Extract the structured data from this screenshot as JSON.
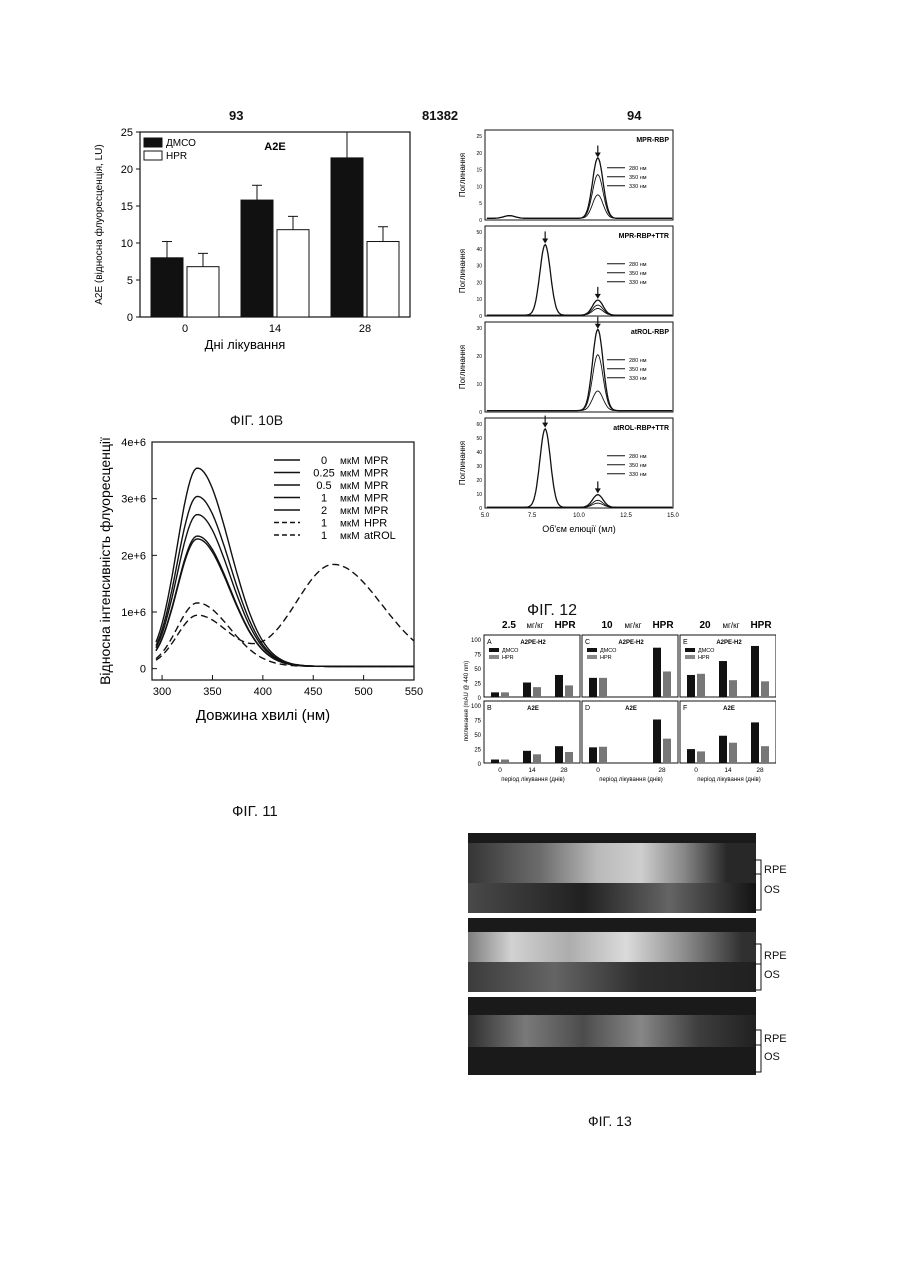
{
  "header": {
    "left": "93",
    "center": "81382",
    "right": "94"
  },
  "fig10b": {
    "caption": "ФІГ. 10В",
    "chart_data": {
      "type": "bar",
      "title": "A2E",
      "xlabel": "Дні лікування",
      "ylabel": "A2E (відносна флуоресценція, LU)",
      "categories": [
        "0",
        "14",
        "28"
      ],
      "ylim": [
        0,
        25
      ],
      "yticks": [
        0,
        5,
        10,
        15,
        20,
        25
      ],
      "series": [
        {
          "name": "ДМСО",
          "values": [
            8,
            15.8,
            21.5
          ],
          "errors": [
            2.2,
            2.0,
            3.5
          ],
          "color": "#111111"
        },
        {
          "name": "HPR",
          "values": [
            6.8,
            11.8,
            10.2
          ],
          "errors": [
            1.8,
            1.8,
            2.0
          ],
          "color": "#ffffff"
        }
      ]
    }
  },
  "fig11": {
    "caption": "ФІГ. 11",
    "chart_data": {
      "type": "line",
      "xlabel": "Довжина хвилі (нм)",
      "ylabel": "Відносна інтенсивність флуоресценції",
      "xlim": [
        290,
        550
      ],
      "ylim": [
        0,
        4000000
      ],
      "xticks": [
        300,
        350,
        400,
        450,
        500,
        550
      ],
      "yticks": [
        0,
        1000000,
        2000000,
        3000000,
        4000000
      ],
      "ytick_labels": [
        "0",
        "1e+6",
        "2e+6",
        "3e+6",
        "4e+6"
      ],
      "series": [
        {
          "name": "0 мкМ MPR",
          "conc": "0",
          "unit": "мкМ",
          "agent": "MPR",
          "peak_x": 335,
          "peak_y": 3500000,
          "dash": "solid"
        },
        {
          "name": "0.25 мкМ MPR",
          "conc": "0.25",
          "unit": "мкМ",
          "agent": "MPR",
          "peak_x": 335,
          "peak_y": 3000000,
          "dash": "solid"
        },
        {
          "name": "0.5 мкМ MPR",
          "conc": "0.5",
          "unit": "мкМ",
          "agent": "MPR",
          "peak_x": 335,
          "peak_y": 2680000,
          "dash": "solid"
        },
        {
          "name": "1 мкМ MPR",
          "conc": "1",
          "unit": "мкМ",
          "agent": "MPR",
          "peak_x": 335,
          "peak_y": 2300000,
          "dash": "solid"
        },
        {
          "name": "2 мкМ MPR",
          "conc": "2",
          "unit": "мкМ",
          "agent": "MPR",
          "peak_x": 335,
          "peak_y": 2250000,
          "dash": "solid"
        },
        {
          "name": "1 мкМ HPR",
          "conc": "1",
          "unit": "мкМ",
          "agent": "HPR",
          "peak_x": 335,
          "peak_y": 1120000,
          "dash": "dashed"
        },
        {
          "name": "1 мкМ atROL",
          "conc": "1",
          "unit": "мкМ",
          "agent": "atROL",
          "peak_x": 335,
          "peak_y": 900000,
          "peak2_x": 470,
          "peak2_y": 1800000,
          "dash": "dashed"
        }
      ]
    }
  },
  "fig12": {
    "caption": "ФІГ. 12",
    "xlabel": "Об'єм елюції (мл)",
    "ylabel": "Поглинання",
    "xticks": [
      "5.0",
      "7.5",
      "10.0",
      "12.5",
      "15.0"
    ],
    "legend": [
      "280 нм",
      "350 нм",
      "330 нм"
    ],
    "panels": [
      {
        "label": "MPR-RBP",
        "ymax": 25,
        "yticks": [
          "0",
          "5",
          "10",
          "15",
          "20",
          "25"
        ],
        "peaks": [
          {
            "x": 11,
            "y": [
              18,
              13,
              7
            ]
          }
        ],
        "small": [
          {
            "x": 6.3,
            "y": 0.8
          }
        ]
      },
      {
        "label": "MPR-RBP+TTR",
        "ymax": 50,
        "yticks": [
          "0",
          "10",
          "20",
          "30",
          "40",
          "50"
        ],
        "peaks": [
          {
            "x": 8.2,
            "y": [
              42,
              0,
              0
            ]
          },
          {
            "x": 11,
            "y": [
              9,
              6,
              4
            ]
          }
        ],
        "small": []
      },
      {
        "label": "atROL-RBP",
        "ymax": 30,
        "yticks": [
          "0",
          "10",
          "20",
          "30"
        ],
        "peaks": [
          {
            "x": 11,
            "y": [
              29,
              20,
              7
            ]
          }
        ],
        "small": []
      },
      {
        "label": "atROL-RBP+TTR",
        "ymax": 60,
        "yticks": [
          "0",
          "10",
          "20",
          "30",
          "40",
          "50",
          "60"
        ],
        "peaks": [
          {
            "x": 8.2,
            "y": [
              56,
              0,
              0
            ]
          },
          {
            "x": 11,
            "y": [
              9,
              5,
              3
            ]
          }
        ],
        "small": []
      }
    ]
  },
  "fig12b": {
    "ylabel": "поглинання (mAU @ 440 nm)",
    "xlabel": "період лікування (днів)",
    "categories": [
      "0",
      "14",
      "28"
    ],
    "legend": [
      "ДМСО",
      "HPR"
    ],
    "column_headers": [
      {
        "dose": "2.5",
        "unit": "мг/кг",
        "drug": "HPR"
      },
      {
        "dose": "10",
        "unit": "мг/кг",
        "drug": "HPR"
      },
      {
        "dose": "20",
        "unit": "мг/кг",
        "drug": "HPR"
      }
    ],
    "chart_data": [
      {
        "panel": "A",
        "title": "A2PE-H2",
        "categories": [
          "0",
          "14",
          "28"
        ],
        "dmso": [
          8,
          25,
          38
        ],
        "hpr": [
          8,
          17,
          20
        ]
      },
      {
        "panel": "C",
        "title": "A2PE-H2",
        "categories": [
          "0",
          "28"
        ],
        "dmso": [
          33,
          85
        ],
        "hpr": [
          33,
          44
        ]
      },
      {
        "panel": "E",
        "title": "A2PE-H2",
        "categories": [
          "0",
          "14",
          "28"
        ],
        "dmso": [
          38,
          62,
          88
        ],
        "hpr": [
          40,
          29,
          27
        ]
      },
      {
        "panel": "B",
        "title": "A2E",
        "categories": [
          "0",
          "14",
          "28"
        ],
        "dmso": [
          6,
          21,
          29
        ],
        "hpr": [
          6,
          15,
          19
        ]
      },
      {
        "panel": "D",
        "title": "A2E",
        "categories": [
          "0",
          "28"
        ],
        "dmso": [
          27,
          75
        ],
        "hpr": [
          28,
          42
        ]
      },
      {
        "panel": "F",
        "title": "A2E",
        "categories": [
          "0",
          "14",
          "28"
        ],
        "dmso": [
          24,
          47,
          70
        ],
        "hpr": [
          20,
          35,
          29
        ]
      }
    ],
    "yticks": [
      "0",
      "25",
      "50",
      "75",
      "100"
    ]
  },
  "fig13": {
    "caption": "ФІГ. 13",
    "labels": [
      "RPE",
      "OS"
    ]
  }
}
